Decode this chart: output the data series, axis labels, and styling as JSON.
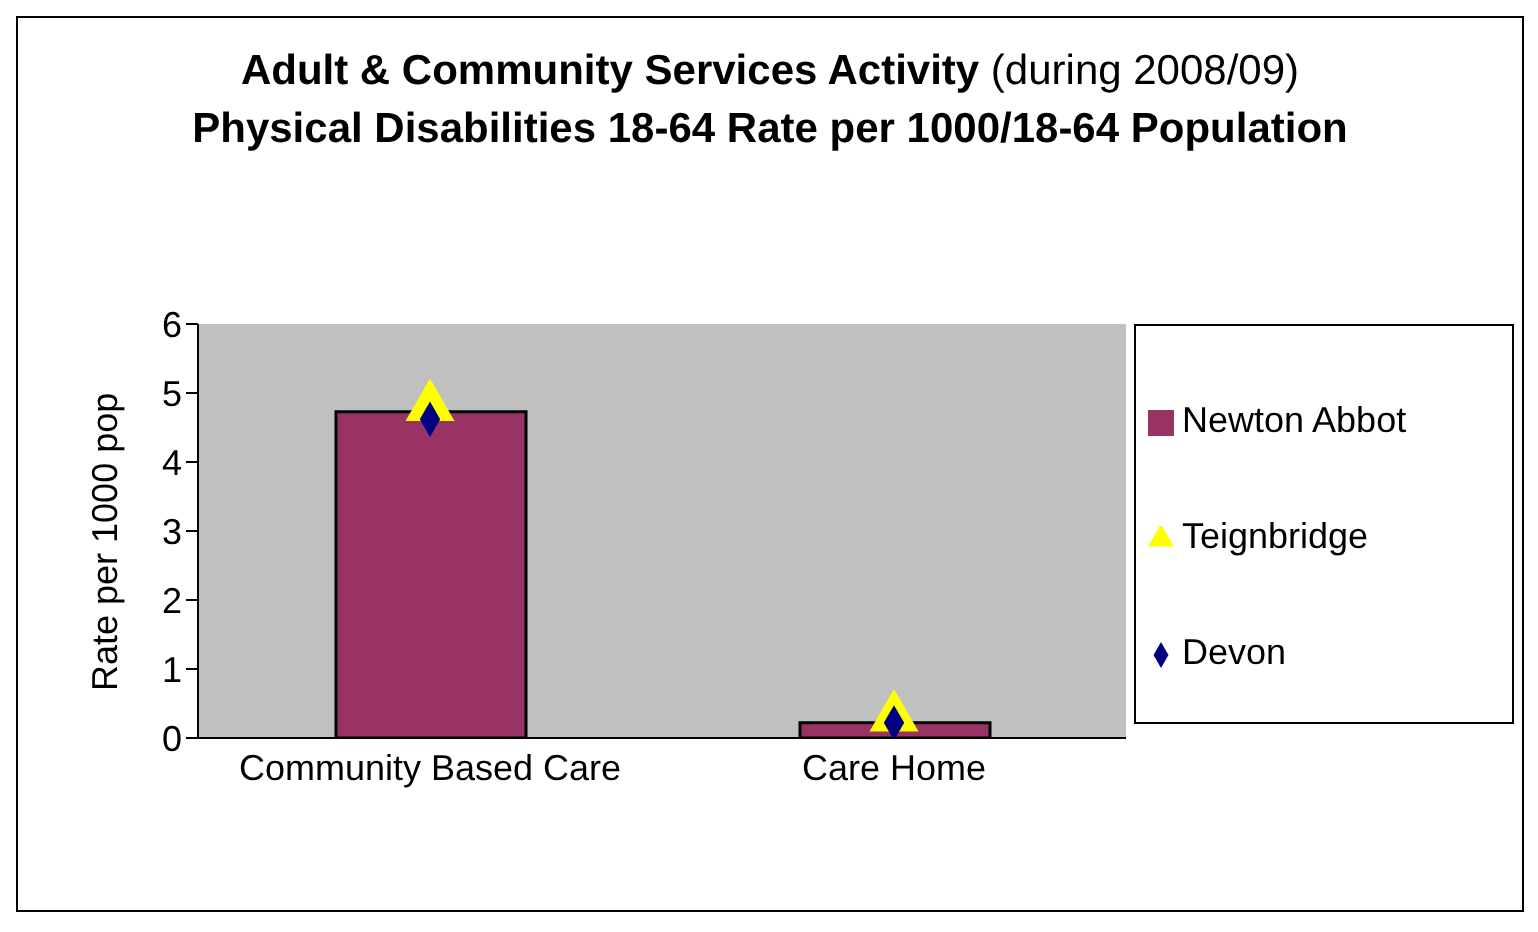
{
  "chart_data": {
    "type": "bar",
    "title": "Adult & Community Services Activity (during 2008/09) Physical Disabilities 18-64 Rate per 1000/18-64 Population",
    "ylabel": "Rate per 1000 pop",
    "categories": [
      "Community Based Care",
      "Care Home"
    ],
    "series": [
      {
        "name": "Newton Abbot",
        "color": "#993366",
        "values": [
          4.73,
          0.22
        ]
      },
      {
        "name": "Teignbridge",
        "type": "scatter",
        "marker": "triangle",
        "color": "#ffff00",
        "values": [
          4.8,
          0.3
        ]
      },
      {
        "name": "Devon",
        "type": "scatter",
        "marker": "diamond",
        "color": "#000080",
        "values": [
          4.62,
          0.22
        ]
      }
    ],
    "ylim": [
      0,
      6
    ],
    "yticks": [
      0,
      1,
      2,
      3,
      4,
      5,
      6
    ],
    "legend": "right"
  }
}
